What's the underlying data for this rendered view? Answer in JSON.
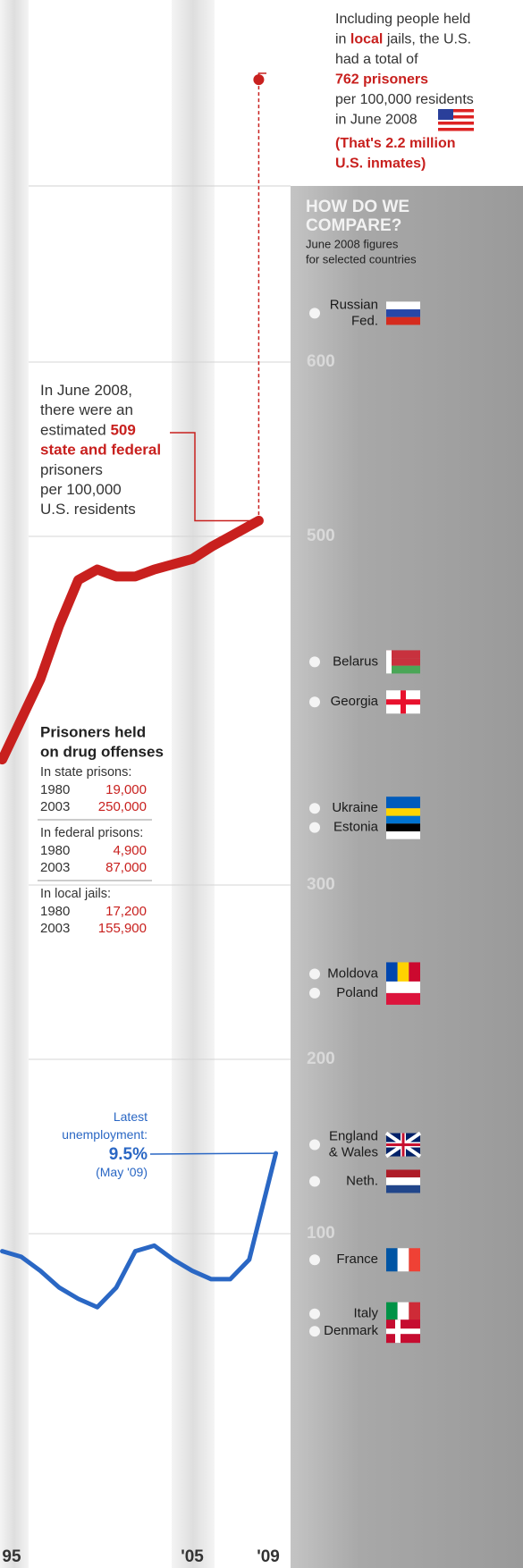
{
  "chart_data": {
    "type": "line",
    "xlim": [
      1994.88,
      2022.41
    ],
    "xticks": [
      {
        "value": 1995,
        "label": "95"
      },
      {
        "value": 2005,
        "label": "'05"
      },
      {
        "value": 2009,
        "label": "'09"
      }
    ],
    "ylim": [
      -91.8,
      807.7
    ],
    "yticks": [
      100,
      200,
      300,
      500,
      600
    ],
    "y2lim": [
      -5.32,
      50.71
    ],
    "grid": true,
    "series": [
      {
        "color": "#c8201e",
        "x": [
          1995,
          1996,
          1997,
          1998,
          1999,
          2000,
          2001,
          2002,
          2003,
          2004,
          2005,
          2006,
          2007,
          2008.5
        ],
        "values": [
          372,
          395,
          418,
          449,
          475,
          481,
          477,
          477,
          481,
          484,
          487,
          494,
          500,
          509
        ]
      },
      {
        "color": "#2a67c4",
        "axis": "y2",
        "x": [
          1995,
          1996,
          1997,
          1998,
          1999,
          2000,
          2001,
          2002,
          2003,
          2004,
          2005,
          2006,
          2007,
          2008,
          2009.4
        ],
        "values": [
          6.0,
          5.8,
          5.3,
          4.7,
          4.3,
          4.0,
          4.7,
          6.0,
          6.2,
          5.7,
          5.3,
          5.0,
          5.0,
          5.7,
          9.5
        ]
      }
    ],
    "annotations": [
      {
        "color": "#c8201e",
        "value": 762,
        "lines": [
          [
            "Including people held"
          ],
          [
            "in ",
            {
              "text": "local",
              "em": true
            },
            " jails, the U.S."
          ],
          [
            "had a total of"
          ],
          [
            {
              "text": "762 prisoners",
              "em": true
            }
          ],
          [
            "per 100,000 residents"
          ],
          [
            "in June 2008"
          ],
          [
            {
              "text": "(That's 2.2 million",
              "em": true
            }
          ],
          [
            {
              "text": "U.S. inmates)",
              "em": true
            }
          ]
        ]
      },
      {
        "color": "#c8201e",
        "lines": [
          [
            "In June 2008,"
          ],
          [
            "there were an"
          ],
          [
            "estimated ",
            {
              "text": "509",
              "em": true
            }
          ],
          [
            {
              "text": "state and federal",
              "em": true
            }
          ],
          [
            "prisoners"
          ],
          [
            "per 100,000"
          ],
          [
            "U.S. residents"
          ]
        ]
      },
      {
        "color": "#2a67c4",
        "lines": [
          [
            "Latest"
          ],
          [
            "unemployment:"
          ],
          [
            {
              "text": "9.5%",
              "em": true
            }
          ],
          [
            "(May '09)"
          ]
        ]
      }
    ],
    "drug_box": {
      "title": [
        "Prisoners held",
        "on drug offenses"
      ],
      "number_color": "#c8201e",
      "groups": [
        {
          "heading": "In state prisons:",
          "rows": [
            [
              "1980",
              "19,000"
            ],
            [
              "2003",
              "250,000"
            ]
          ]
        },
        {
          "heading": "In federal prisons:",
          "rows": [
            [
              "1980",
              "4,900"
            ],
            [
              "2003",
              "87,000"
            ]
          ]
        },
        {
          "heading": "In local jails:",
          "rows": [
            [
              "1980",
              "17,200"
            ],
            [
              "2003",
              "155,900"
            ]
          ]
        }
      ]
    },
    "comparison": {
      "title": [
        "HOW DO WE",
        "COMPARE?"
      ],
      "subtitle": [
        "June 2008 figures",
        "for selected countries"
      ],
      "countries": [
        {
          "name": [
            "Russian",
            "Fed."
          ],
          "value": 628
        },
        {
          "name": [
            "Belarus"
          ],
          "value": 428
        },
        {
          "name": [
            "Georgia"
          ],
          "value": 405
        },
        {
          "name": [
            "Ukraine"
          ],
          "value": 344
        },
        {
          "name": [
            "Estonia"
          ],
          "value": 333
        },
        {
          "name": [
            "Moldova"
          ],
          "value": 249
        },
        {
          "name": [
            "Poland"
          ],
          "value": 238
        },
        {
          "name": [
            "England",
            "& Wales"
          ],
          "value": 151
        },
        {
          "name": [
            "Neth."
          ],
          "value": 130
        },
        {
          "name": [
            "France"
          ],
          "value": 85
        },
        {
          "name": [
            "Italy"
          ],
          "value": 54
        },
        {
          "name": [
            "Denmark"
          ],
          "value": 44
        }
      ]
    }
  }
}
